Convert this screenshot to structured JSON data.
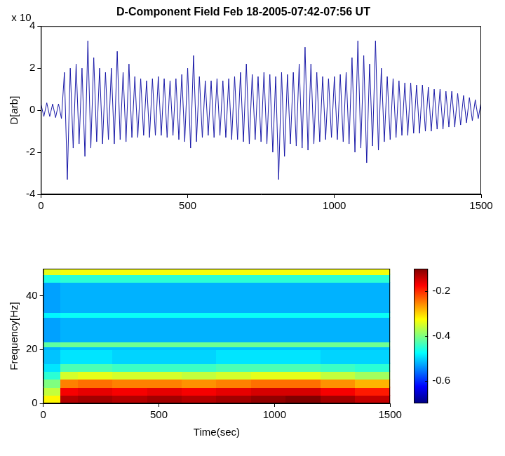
{
  "chart_data": [
    {
      "type": "line",
      "title": "D-Component Field Feb 18-2005-07:42-07:56 UT",
      "annotation": "x 10",
      "y_label": "D[arb]",
      "x": [
        0,
        10,
        20,
        30,
        40,
        50,
        60,
        70,
        80,
        90,
        100,
        110,
        120,
        130,
        140,
        150,
        160,
        170,
        180,
        190,
        200,
        210,
        220,
        230,
        240,
        250,
        260,
        270,
        280,
        290,
        300,
        310,
        320,
        330,
        340,
        350,
        360,
        370,
        380,
        390,
        400,
        410,
        420,
        430,
        440,
        450,
        460,
        470,
        480,
        490,
        500,
        510,
        520,
        530,
        540,
        550,
        560,
        570,
        580,
        590,
        600,
        610,
        620,
        630,
        640,
        650,
        660,
        670,
        680,
        690,
        700,
        710,
        720,
        730,
        740,
        750,
        760,
        770,
        780,
        790,
        800,
        810,
        820,
        830,
        840,
        850,
        860,
        870,
        880,
        890,
        900,
        910,
        920,
        930,
        940,
        950,
        960,
        970,
        980,
        990,
        1000,
        1010,
        1020,
        1030,
        1040,
        1050,
        1060,
        1070,
        1080,
        1090,
        1100,
        1110,
        1120,
        1130,
        1140,
        1150,
        1160,
        1170,
        1180,
        1190,
        1200,
        1210,
        1220,
        1230,
        1240,
        1250,
        1260,
        1270,
        1280,
        1290,
        1300,
        1310,
        1320,
        1330,
        1340,
        1350,
        1360,
        1370,
        1380,
        1390,
        1400,
        1410,
        1420,
        1430,
        1440,
        1450,
        1460,
        1470,
        1480,
        1490,
        1500
      ],
      "values": [
        0.3,
        -0.3,
        0.35,
        -0.3,
        0.3,
        -0.35,
        0.3,
        -0.4,
        1.8,
        -3.3,
        2.0,
        -1.8,
        2.2,
        -1.6,
        2.0,
        -2.2,
        3.3,
        -1.8,
        2.5,
        -1.5,
        2.0,
        -1.6,
        1.8,
        -1.4,
        2.0,
        -1.6,
        2.8,
        -1.4,
        1.8,
        -1.5,
        2.2,
        -1.3,
        1.6,
        -1.3,
        1.5,
        -1.2,
        1.4,
        -1.3,
        1.5,
        -1.2,
        1.6,
        -1.2,
        1.5,
        -1.3,
        1.4,
        -1.2,
        1.5,
        -1.4,
        1.7,
        -1.5,
        2.0,
        -1.8,
        2.6,
        -1.5,
        1.6,
        -1.3,
        1.4,
        -1.2,
        1.4,
        -1.3,
        1.5,
        -1.2,
        1.4,
        -1.3,
        1.5,
        -1.4,
        1.6,
        -1.4,
        1.8,
        -1.5,
        2.2,
        -1.6,
        1.7,
        -1.4,
        1.6,
        -1.5,
        1.8,
        -1.6,
        1.7,
        -2.0,
        1.6,
        -3.3,
        1.8,
        -2.2,
        1.7,
        -1.6,
        1.8,
        -1.7,
        2.2,
        -1.8,
        3.0,
        -1.9,
        2.2,
        -1.6,
        1.8,
        -1.5,
        1.6,
        -1.4,
        1.5,
        -1.3,
        1.6,
        -1.4,
        1.7,
        -1.5,
        1.8,
        -1.6,
        2.5,
        -2.0,
        3.3,
        -1.8,
        2.6,
        -2.5,
        2.2,
        -1.7,
        3.3,
        -1.9,
        2.0,
        -1.5,
        1.6,
        -1.4,
        1.5,
        -1.3,
        1.4,
        -1.2,
        1.3,
        -1.2,
        1.3,
        -1.1,
        1.2,
        -1.1,
        1.2,
        -1.0,
        1.1,
        -1.0,
        1.0,
        -0.9,
        1.0,
        -0.9,
        0.9,
        -0.8,
        0.9,
        -0.8,
        0.8,
        -0.7,
        0.7,
        -0.6,
        0.6,
        -0.5,
        0.5,
        -0.4,
        0.4
      ],
      "color": "#1a1aa8",
      "marker": "none",
      "line_style": "solid",
      "xlim": [
        0,
        1500
      ],
      "xticks": [
        0,
        500,
        1000,
        1500
      ],
      "ylim": [
        -4,
        4
      ],
      "yticks": [
        -4,
        -2,
        0,
        2,
        4
      ],
      "grid": false
    },
    {
      "type": "heatmap",
      "x_label": "Time(sec)",
      "y_label": "Frequency[Hz]",
      "x_edges": [
        0,
        75,
        150,
        300,
        450,
        600,
        750,
        900,
        1050,
        1200,
        1350,
        1500
      ],
      "y_edges": [
        0,
        3,
        6,
        9,
        12,
        15,
        20,
        21,
        23,
        32,
        34,
        45,
        48,
        50
      ],
      "cells": [
        [
          -0.32,
          -0.13,
          -0.12,
          -0.13,
          -0.12,
          -0.13,
          -0.12,
          -0.11,
          -0.1,
          -0.12,
          -0.14
        ],
        [
          -0.36,
          -0.17,
          -0.16,
          -0.17,
          -0.16,
          -0.17,
          -0.16,
          -0.15,
          -0.15,
          -0.17,
          -0.19
        ],
        [
          -0.4,
          -0.25,
          -0.24,
          -0.25,
          -0.25,
          -0.26,
          -0.25,
          -0.24,
          -0.24,
          -0.26,
          -0.28
        ],
        [
          -0.45,
          -0.35,
          -0.34,
          -0.35,
          -0.35,
          -0.36,
          -0.35,
          -0.34,
          -0.34,
          -0.36,
          -0.38
        ],
        [
          -0.49,
          -0.43,
          -0.43,
          -0.44,
          -0.44,
          -0.44,
          -0.43,
          -0.43,
          -0.43,
          -0.44,
          -0.45
        ],
        [
          -0.51,
          -0.49,
          -0.49,
          -0.5,
          -0.5,
          -0.5,
          -0.49,
          -0.49,
          -0.49,
          -0.5,
          -0.5
        ],
        [
          -0.52,
          -0.51,
          -0.51,
          -0.51,
          -0.51,
          -0.51,
          -0.51,
          -0.51,
          -0.51,
          -0.51,
          -0.51
        ],
        [
          -0.42,
          -0.41,
          -0.41,
          -0.41,
          -0.41,
          -0.41,
          -0.41,
          -0.41,
          -0.41,
          -0.41,
          -0.41
        ],
        [
          -0.53,
          -0.52,
          -0.52,
          -0.52,
          -0.52,
          -0.52,
          -0.52,
          -0.52,
          -0.52,
          -0.52,
          -0.52
        ],
        [
          -0.48,
          -0.47,
          -0.47,
          -0.47,
          -0.47,
          -0.47,
          -0.47,
          -0.47,
          -0.47,
          -0.47,
          -0.47
        ],
        [
          -0.53,
          -0.52,
          -0.52,
          -0.52,
          -0.52,
          -0.52,
          -0.52,
          -0.52,
          -0.52,
          -0.52,
          -0.52
        ],
        [
          -0.46,
          -0.45,
          -0.45,
          -0.45,
          -0.45,
          -0.45,
          -0.45,
          -0.45,
          -0.45,
          -0.45,
          -0.45
        ],
        [
          -0.34,
          -0.33,
          -0.33,
          -0.33,
          -0.33,
          -0.33,
          -0.33,
          -0.33,
          -0.33,
          -0.33,
          -0.33
        ]
      ],
      "color": "jet",
      "colorbar": {
        "lim": [
          -0.7,
          -0.1
        ],
        "ticks": [
          -0.6,
          -0.4,
          -0.2
        ]
      },
      "xlim": [
        0,
        1500
      ],
      "xticks": [
        0,
        500,
        1000,
        1500
      ],
      "ylim": [
        0,
        50
      ],
      "yticks": [
        0,
        20,
        40
      ],
      "grid": false
    }
  ]
}
